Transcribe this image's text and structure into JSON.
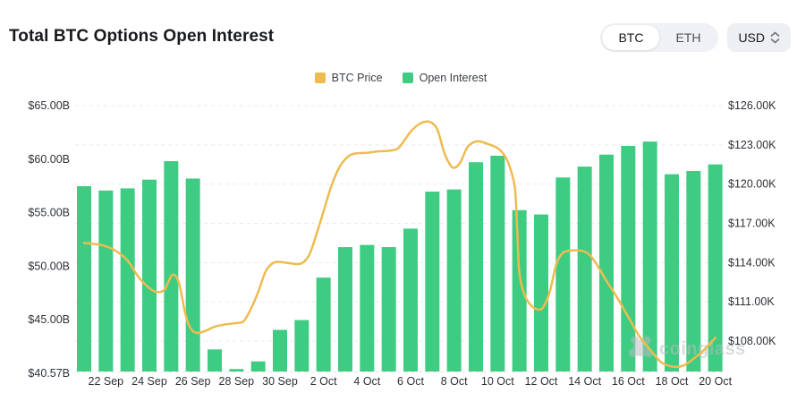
{
  "header": {
    "title": "Total BTC Options Open Interest",
    "asset_toggle": {
      "options": [
        "BTC",
        "ETH"
      ],
      "selected": "BTC"
    },
    "currency_select": {
      "value": "USD"
    }
  },
  "legend": [
    {
      "label": "BTC Price",
      "color": "#EEBB4F"
    },
    {
      "label": "Open Interest",
      "color": "#3ECC83"
    }
  ],
  "watermark": {
    "text": "coinglass"
  },
  "chart_data": {
    "type": "bar",
    "title": "Total BTC Options Open Interest",
    "grid": "horizontal dashed",
    "categories": [
      "21 Sep",
      "22 Sep",
      "23 Sep",
      "24 Sep",
      "25 Sep",
      "26 Sep",
      "27 Sep",
      "28 Sep",
      "29 Sep",
      "30 Sep",
      "1 Oct",
      "2 Oct",
      "3 Oct",
      "4 Oct",
      "5 Oct",
      "6 Oct",
      "7 Oct",
      "8 Oct",
      "9 Oct",
      "10 Oct",
      "11 Oct",
      "12 Oct",
      "13 Oct",
      "14 Oct",
      "15 Oct",
      "16 Oct",
      "17 Oct",
      "18 Oct",
      "19 Oct",
      "20 Oct"
    ],
    "x_tick_labels": [
      "22 Sep",
      "24 Sep",
      "26 Sep",
      "28 Sep",
      "30 Sep",
      "2 Oct",
      "4 Oct",
      "6 Oct",
      "8 Oct",
      "10 Oct",
      "12 Oct",
      "14 Oct",
      "16 Oct",
      "18 Oct",
      "20 Oct"
    ],
    "left_axis": {
      "unit": "USD billions",
      "min": 40.57,
      "max": 65,
      "labels": [
        "$65.00B",
        "$60.00B",
        "$55.00B",
        "$50.00B",
        "$45.00B",
        "$40.57B"
      ]
    },
    "right_axis": {
      "unit": "USD thousands",
      "top": 126,
      "bottom_label": 108,
      "step": 3,
      "labels": [
        "$126.00K",
        "$123.00K",
        "$120.00K",
        "$117.00K",
        "$114.00K",
        "$111.00K",
        "$108.00K"
      ]
    },
    "series": [
      {
        "name": "Open Interest",
        "type": "bar",
        "axis": "left",
        "color": "#3ECC83",
        "values": [
          57.6,
          57.2,
          57.4,
          58.2,
          59.9,
          58.3,
          42.6,
          40.8,
          41.5,
          44.4,
          45.3,
          49.2,
          52.0,
          52.2,
          52.0,
          53.7,
          57.1,
          57.3,
          59.8,
          60.4,
          55.4,
          55.0,
          58.4,
          59.4,
          60.5,
          61.3,
          61.7,
          58.7,
          59.0,
          59.6
        ]
      },
      {
        "name": "BTC Price",
        "type": "line",
        "axis": "right",
        "color": "#EEBB4F",
        "points": [
          [
            0,
            115.5
          ],
          [
            0.5,
            115.42
          ],
          [
            1,
            115.25
          ],
          [
            1.5,
            114.85
          ],
          [
            2,
            114.15
          ],
          [
            2.5,
            112.9
          ],
          [
            3,
            112.05
          ],
          [
            3.35,
            111.75
          ],
          [
            3.7,
            111.95
          ],
          [
            4.05,
            113.05
          ],
          [
            4.35,
            112.5
          ],
          [
            4.65,
            110.1
          ],
          [
            4.9,
            108.95
          ],
          [
            5.2,
            108.62
          ],
          [
            5.6,
            108.8
          ],
          [
            6,
            109.1
          ],
          [
            6.5,
            109.28
          ],
          [
            7,
            109.38
          ],
          [
            7.35,
            109.55
          ],
          [
            7.7,
            110.6
          ],
          [
            8,
            111.75
          ],
          [
            8.35,
            113.35
          ],
          [
            8.7,
            113.98
          ],
          [
            9,
            114.05
          ],
          [
            9.4,
            113.96
          ],
          [
            9.7,
            113.9
          ],
          [
            10,
            113.95
          ],
          [
            10.35,
            114.6
          ],
          [
            10.7,
            116.3
          ],
          [
            11,
            117.9
          ],
          [
            11.35,
            119.8
          ],
          [
            11.7,
            121.2
          ],
          [
            12,
            121.9
          ],
          [
            12.35,
            122.3
          ],
          [
            13,
            122.4
          ],
          [
            13.5,
            122.5
          ],
          [
            14,
            122.55
          ],
          [
            14.4,
            122.7
          ],
          [
            14.7,
            123.3
          ],
          [
            15,
            124.0
          ],
          [
            15.4,
            124.6
          ],
          [
            15.75,
            124.78
          ],
          [
            16,
            124.65
          ],
          [
            16.25,
            124.1
          ],
          [
            16.55,
            122.4
          ],
          [
            16.85,
            121.4
          ],
          [
            17.05,
            121.27
          ],
          [
            17.3,
            121.7
          ],
          [
            17.6,
            122.8
          ],
          [
            17.9,
            123.2
          ],
          [
            18.15,
            123.27
          ],
          [
            18.5,
            123.1
          ],
          [
            19,
            122.75
          ],
          [
            19.35,
            122.1
          ],
          [
            19.6,
            121.1
          ],
          [
            19.8,
            119.6
          ],
          [
            19.9,
            116.5
          ],
          [
            20,
            113.2
          ],
          [
            20.25,
            111.5
          ],
          [
            20.55,
            110.7
          ],
          [
            20.85,
            110.42
          ],
          [
            21.1,
            110.6
          ],
          [
            21.4,
            111.8
          ],
          [
            21.7,
            113.9
          ],
          [
            22,
            114.75
          ],
          [
            22.35,
            114.92
          ],
          [
            22.8,
            114.92
          ],
          [
            23.15,
            114.7
          ],
          [
            23.5,
            114.0
          ],
          [
            24,
            112.6
          ],
          [
            24.5,
            111.3
          ],
          [
            25,
            109.85
          ],
          [
            25.5,
            108.4
          ],
          [
            26,
            107.35
          ],
          [
            26.5,
            106.4
          ],
          [
            26.9,
            106.1
          ],
          [
            27.25,
            106.03
          ],
          [
            27.6,
            106.18
          ],
          [
            28,
            106.65
          ],
          [
            28.5,
            107.35
          ],
          [
            29,
            108.25
          ]
        ]
      }
    ]
  }
}
